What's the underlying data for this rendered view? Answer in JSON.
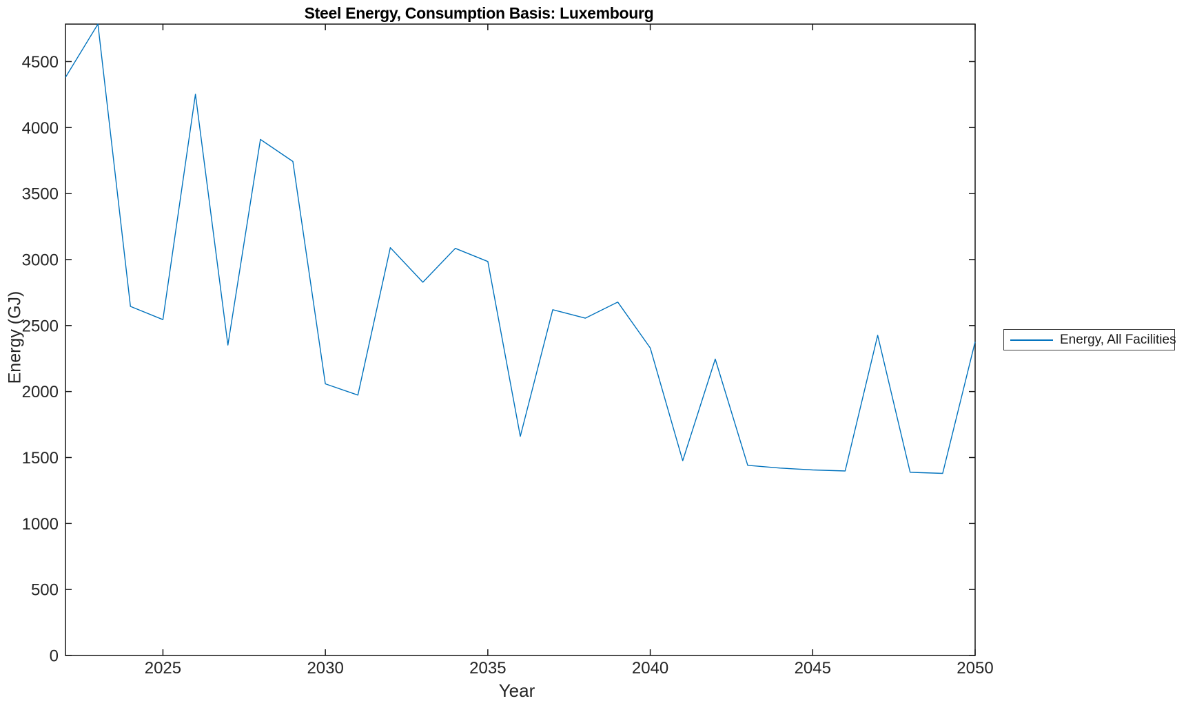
{
  "figure": {
    "title": "Steel Energy, Consumption Basis: Luxembourg",
    "xlabel": "Year",
    "ylabel": "Energy (GJ)",
    "legend": {
      "entries": [
        "Energy, All Facilities"
      ],
      "position": "right-outside"
    }
  },
  "chart_data": {
    "type": "line",
    "title": "Steel Energy, Consumption Basis: Luxembourg",
    "xlabel": "Year",
    "ylabel": "Energy (GJ)",
    "grid": false,
    "legend_position": "right-outside",
    "xlim": [
      2022,
      2050
    ],
    "ylim": [
      0,
      4784
    ],
    "x_ticks": [
      2025,
      2030,
      2035,
      2040,
      2045,
      2050
    ],
    "y_ticks": [
      0,
      500,
      1000,
      1500,
      2000,
      2500,
      3000,
      3500,
      4000,
      4500
    ],
    "line_color": "#0072BD",
    "axis_color": "#141414",
    "series": [
      {
        "name": "Energy, All Facilities",
        "x": [
          2022,
          2023,
          2024,
          2025,
          2026,
          2027,
          2028,
          2029,
          2030,
          2031,
          2032,
          2033,
          2034,
          2035,
          2036,
          2037,
          2038,
          2039,
          2040,
          2041,
          2042,
          2043,
          2044,
          2045,
          2046,
          2047,
          2048,
          2049,
          2050
        ],
        "values": [
          4380,
          4784,
          2645,
          2545,
          4253,
          2352,
          3910,
          3743,
          2058,
          1973,
          3090,
          2828,
          3085,
          2985,
          1660,
          2620,
          2556,
          2678,
          2330,
          1476,
          2246,
          1441,
          1420,
          1406,
          1398,
          2426,
          1388,
          1380,
          2377
        ]
      }
    ]
  }
}
